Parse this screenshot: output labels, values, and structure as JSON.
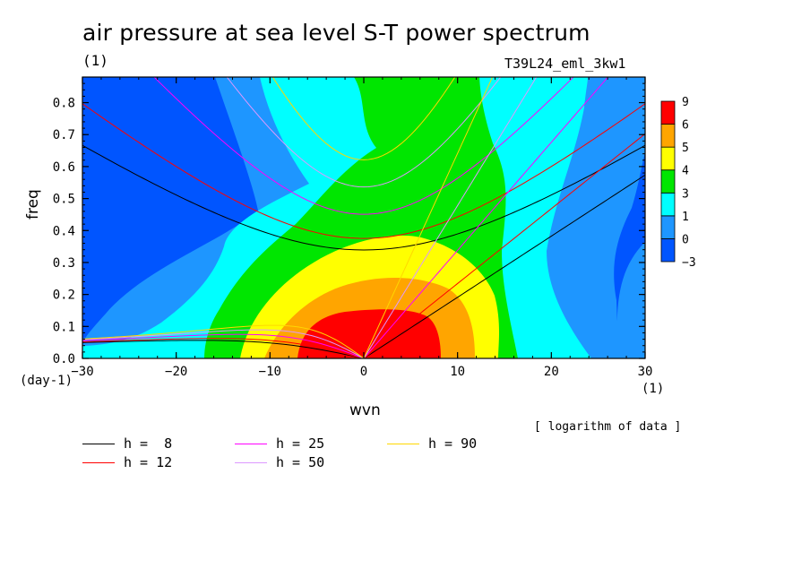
{
  "title": "air pressure at sea level S-T power spectrum",
  "units_label": "(1)",
  "run_label": "T39L24_eml_3kw1",
  "note": "[ logarithm of data ]",
  "xlabel": "wvn",
  "ylabel": "freq",
  "x_unit": "(1)",
  "y_unit": "(day-1)",
  "chart_data": {
    "type": "heatmap",
    "title": "air pressure at sea level S-T power spectrum",
    "xlabel": "wvn",
    "ylabel": "freq",
    "xlim": [
      -30,
      30
    ],
    "ylim": [
      0,
      0.88
    ],
    "x_ticks": [
      -30,
      -20,
      -10,
      0,
      10,
      20,
      30
    ],
    "y_ticks": [
      0.0,
      0.1,
      0.2,
      0.3,
      0.4,
      0.5,
      0.6,
      0.7,
      0.8
    ],
    "colorbar": {
      "levels": [
        -3,
        0,
        1,
        3,
        4,
        5,
        6,
        9
      ],
      "colors": [
        "#0055ff",
        "#1e96ff",
        "#00ffff",
        "#00e600",
        "#ffff00",
        "#ffa500",
        "#ff0000"
      ]
    },
    "dispersion_curves": [
      {
        "name": "h =  8",
        "color": "#000000"
      },
      {
        "name": "h = 12",
        "color": "#ff0000"
      },
      {
        "name": "h = 25",
        "color": "#ff00ff"
      },
      {
        "name": "h = 50",
        "color": "#dd99ff"
      },
      {
        "name": "h = 90",
        "color": "#ffd700"
      }
    ]
  },
  "legend": [
    {
      "label": "h =  8",
      "color": "#000000"
    },
    {
      "label": "h = 12",
      "color": "#ff0000"
    },
    {
      "label": "h = 25",
      "color": "#ff00ff"
    },
    {
      "label": "h = 50",
      "color": "#dd99ff"
    },
    {
      "label": "h = 90",
      "color": "#ffd700"
    }
  ]
}
